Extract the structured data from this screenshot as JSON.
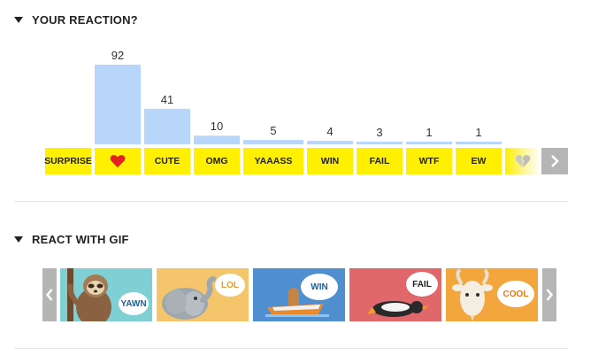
{
  "sections": {
    "reaction_title": "YOUR REACTION?",
    "gif_title": "REACT WITH GIF"
  },
  "reactions": [
    {
      "label": "SURPRISE",
      "count": ""
    },
    {
      "label": "",
      "icon": "heart-icon",
      "count": "92"
    },
    {
      "label": "CUTE",
      "count": "41"
    },
    {
      "label": "OMG",
      "count": "10"
    },
    {
      "label": "YAAASS",
      "count": "5"
    },
    {
      "label": "WIN",
      "count": "4"
    },
    {
      "label": "FAIL",
      "count": "3"
    },
    {
      "label": "WTF",
      "count": "1"
    },
    {
      "label": "EW",
      "count": "1"
    },
    {
      "label": "",
      "icon": "broken-heart-icon",
      "count": ""
    }
  ],
  "chart_data": {
    "type": "bar",
    "categories": [
      "SURPRISE",
      "LOVE",
      "CUTE",
      "OMG",
      "YAAASS",
      "WIN",
      "FAIL",
      "WTF",
      "EW"
    ],
    "values": [
      0,
      92,
      41,
      10,
      5,
      4,
      3,
      1,
      1
    ],
    "title": "",
    "xlabel": "",
    "ylabel": "",
    "ylim": [
      0,
      92
    ],
    "grid": false,
    "bar_color": "#b8d6fa"
  },
  "gifs": [
    {
      "label": "YAWN",
      "bg": "#7fd0d4",
      "label_color": "#1d5f9a"
    },
    {
      "label": "LOL",
      "bg": "#f5c56b",
      "label_color": "#e69b22"
    },
    {
      "label": "WIN",
      "bg": "#4f8fd0",
      "label_color": "#1d5f9a"
    },
    {
      "label": "FAIL",
      "bg": "#e0676a",
      "label_color": "#222222"
    },
    {
      "label": "COOL",
      "bg": "#f3a63c",
      "label_color": "#e07a1a"
    }
  ],
  "colors": {
    "reaction_bg": "#ffef00",
    "bar": "#b8d6fa",
    "arrow_bg": "#b5b5b5"
  },
  "icons": {
    "header_toggle": "triangle-down-icon",
    "next": "chevron-right-icon",
    "prev": "chevron-left-icon"
  }
}
